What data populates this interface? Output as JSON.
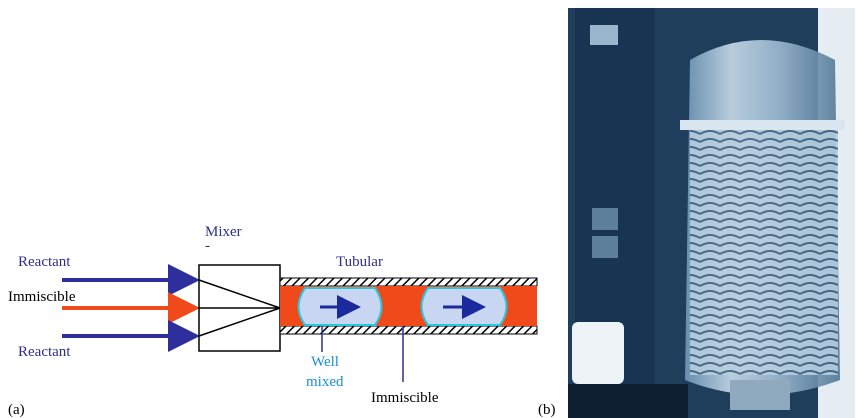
{
  "labels": {
    "mixer": "Mixer",
    "mixer_dash": "-",
    "tubular": "Tubular",
    "reactant_top": "Reactant",
    "immiscible_in": "Immiscible",
    "reactant_bottom": "Reactant",
    "well_mixed_1": "Well",
    "well_mixed_2": "mixed",
    "immiscible_tube": "Immiscible",
    "panel_a": "(a)",
    "panel_b": "(b)"
  }
}
